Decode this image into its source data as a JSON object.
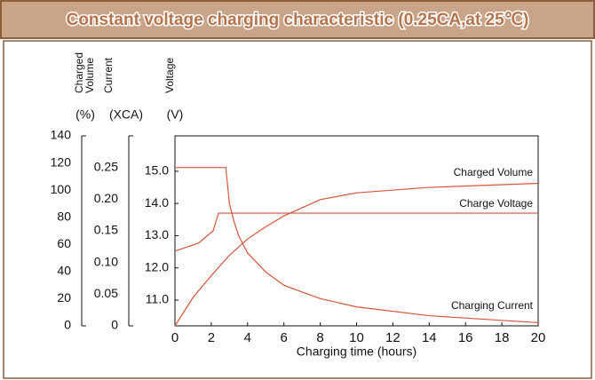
{
  "chart_data": {
    "type": "line",
    "title": "Constant voltage charging characteristic (0.25CA,at 25℃)",
    "xlabel": "Charging time (hours)",
    "xlim": [
      0,
      20
    ],
    "xticks": [
      0,
      2,
      4,
      6,
      8,
      10,
      12,
      14,
      16,
      18,
      20
    ],
    "ylabel": "Charged Volume",
    "yunit": "(%)",
    "ylim": [
      0,
      140
    ],
    "yticks": [
      0,
      20,
      40,
      60,
      80,
      100,
      120,
      140
    ],
    "y2label": "Current",
    "y2unit": "(XCA)",
    "y2lim": [
      0,
      0.3
    ],
    "y2ticks": [
      0,
      {
        "value": 0.05,
        "label": "0.05"
      },
      {
        "value": 0.1,
        "label": "0.10"
      },
      {
        "value": 0.15,
        "label": "0.15"
      },
      {
        "value": 0.2,
        "label": "0.20"
      },
      {
        "value": 0.25,
        "label": "0.25"
      }
    ],
    "y3label": "Voltage",
    "y3unit": "(V)",
    "y3lim": [
      10.2,
      16.1
    ],
    "y3ticks": [
      {
        "value": 11,
        "label": "11.0"
      },
      {
        "value": 12,
        "label": "12.0"
      },
      {
        "value": 13,
        "label": "13.0"
      },
      {
        "value": 14,
        "label": "14.0"
      },
      {
        "value": 15,
        "label": "15.0"
      }
    ],
    "series": [
      {
        "name": "Charged Volume",
        "color": "#d9553a",
        "axis": "y",
        "x": [
          0,
          1,
          2,
          3,
          4,
          5,
          6,
          8,
          10,
          14,
          20
        ],
        "values": [
          0,
          21,
          37,
          52,
          64,
          73,
          81,
          93,
          98,
          102,
          105
        ]
      },
      {
        "name": "Charge Voltage",
        "color": "#d9553a",
        "axis": "y3",
        "x": [
          0,
          1.3,
          2.1,
          2.4,
          20
        ],
        "values": [
          12.52,
          12.77,
          13.15,
          13.7,
          13.7
        ]
      },
      {
        "name": "Charging Current",
        "color": "#d9553a",
        "axis": "y2",
        "x": [
          0,
          2.8,
          3,
          3.25,
          3.5,
          4,
          5,
          6,
          8,
          10,
          14,
          20
        ],
        "values": [
          0.25,
          0.25,
          0.193,
          0.165,
          0.143,
          0.115,
          0.085,
          0.064,
          0.043,
          0.03,
          0.016,
          0.005
        ]
      }
    ]
  }
}
